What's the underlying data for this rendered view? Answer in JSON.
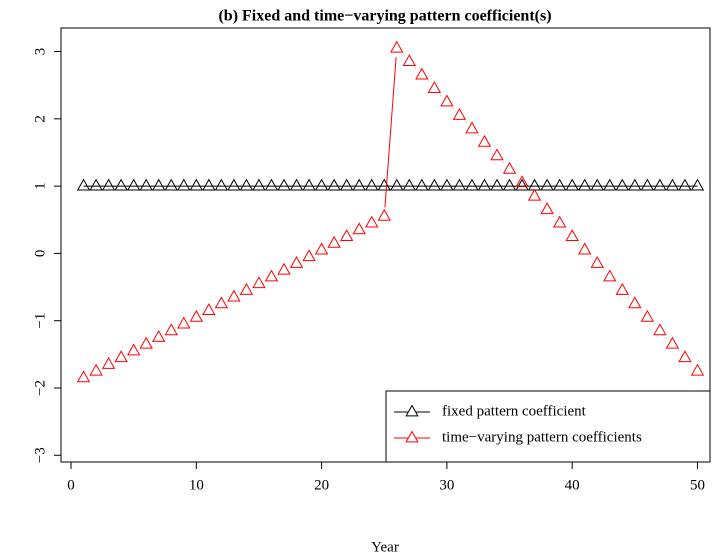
{
  "chart_data": {
    "type": "line",
    "title": "(b) Fixed and time−varying pattern coefficient(s)",
    "x_label": "Year",
    "x": [
      1,
      2,
      3,
      4,
      5,
      6,
      7,
      8,
      9,
      10,
      11,
      12,
      13,
      14,
      15,
      16,
      17,
      18,
      19,
      20,
      21,
      22,
      23,
      24,
      25,
      26,
      27,
      28,
      29,
      30,
      31,
      32,
      33,
      34,
      35,
      36,
      37,
      38,
      39,
      40,
      41,
      42,
      43,
      44,
      45,
      46,
      47,
      48,
      49,
      50
    ],
    "series": [
      {
        "name": "fixed pattern coefficient",
        "color": "#000000",
        "marker": "triangle",
        "line_gaps": false,
        "values": [
          1,
          1,
          1,
          1,
          1,
          1,
          1,
          1,
          1,
          1,
          1,
          1,
          1,
          1,
          1,
          1,
          1,
          1,
          1,
          1,
          1,
          1,
          1,
          1,
          1,
          1,
          1,
          1,
          1,
          1,
          1,
          1,
          1,
          1,
          1,
          1,
          1,
          1,
          1,
          1,
          1,
          1,
          1,
          1,
          1,
          1,
          1,
          1,
          1,
          1
        ]
      },
      {
        "name": "time−varying pattern coefficients",
        "color": "#ff0000",
        "marker": "triangle",
        "line_gaps": true,
        "values": [
          -1.85,
          -1.75,
          -1.65,
          -1.55,
          -1.45,
          -1.35,
          -1.25,
          -1.15,
          -1.05,
          -0.95,
          -0.85,
          -0.75,
          -0.65,
          -0.55,
          -0.45,
          -0.35,
          -0.25,
          -0.15,
          -0.05,
          0.05,
          0.15,
          0.25,
          0.35,
          0.45,
          0.55,
          3.05,
          2.85,
          2.65,
          2.45,
          2.25,
          2.05,
          1.85,
          1.65,
          1.45,
          1.25,
          1.05,
          0.85,
          0.65,
          0.45,
          0.25,
          0.05,
          -0.15,
          -0.35,
          -0.55,
          -0.75,
          -0.95,
          -1.15,
          -1.35,
          -1.55,
          -1.75
        ]
      }
    ],
    "xlim": [
      -0.8,
      51.0
    ],
    "ylim": [
      -3.1,
      3.35
    ],
    "xticks": [
      0,
      10,
      20,
      30,
      40,
      50
    ],
    "yticks": [
      {
        "value": -3,
        "label": "−3"
      },
      {
        "value": -2,
        "label": "−2"
      },
      {
        "value": -1,
        "label": "−1"
      },
      0,
      1,
      2,
      3
    ],
    "legend": "bottomright"
  }
}
